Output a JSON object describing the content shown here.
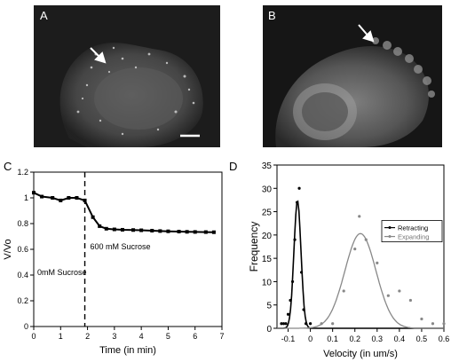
{
  "panels": {
    "a": {
      "label": "A"
    },
    "b": {
      "label": "B"
    },
    "c": {
      "label": "C"
    },
    "d": {
      "label": "D"
    }
  },
  "chart_data": [
    {
      "type": "line",
      "panel": "C",
      "xlabel": "Time (in min)",
      "ylabel": "V/Vo",
      "xlim": [
        0,
        7
      ],
      "ylim": [
        0,
        1.2
      ],
      "xticks": [
        "0",
        "1",
        "2",
        "3",
        "4",
        "5",
        "6",
        "7"
      ],
      "yticks": [
        "0",
        "0.2",
        "0.4",
        "0.6",
        "0.8",
        "1",
        "1.2"
      ],
      "grid": false,
      "annotations": {
        "left": "0mM Sucrose",
        "right": "600 mM Sucrose",
        "divider_x": 1.9
      },
      "series": [
        {
          "color": "#000000",
          "x": [
            0,
            0.3,
            0.7,
            1.0,
            1.3,
            1.6,
            1.9,
            2.2,
            2.45,
            2.7,
            3.0,
            3.3,
            3.7,
            4.0,
            4.4,
            4.7,
            5.0,
            5.4,
            5.7,
            6.0,
            6.4,
            6.7
          ],
          "y": [
            1.04,
            1.01,
            1.0,
            0.98,
            1.0,
            1.0,
            0.98,
            0.85,
            0.78,
            0.76,
            0.755,
            0.752,
            0.75,
            0.748,
            0.745,
            0.742,
            0.74,
            0.738,
            0.736,
            0.735,
            0.734,
            0.733
          ]
        }
      ]
    },
    {
      "type": "scatter",
      "panel": "D",
      "xlabel": "Velocity (in um/s)",
      "ylabel": "Frequency",
      "xlim": [
        -0.15,
        0.6
      ],
      "ylim": [
        0,
        35
      ],
      "xticks": [
        "-0.1",
        "0",
        "0.1",
        "0.2",
        "0.3",
        "0.4",
        "0.5",
        "0.6"
      ],
      "yticks": [
        "0",
        "5",
        "10",
        "15",
        "20",
        "25",
        "30",
        "35"
      ],
      "grid": false,
      "legend_position": "right",
      "series": [
        {
          "name": "Retracting",
          "color": "#000000",
          "points": [
            [
              -0.13,
              1
            ],
            [
              -0.12,
              1
            ],
            [
              -0.11,
              1
            ],
            [
              -0.1,
              3
            ],
            [
              -0.09,
              6
            ],
            [
              -0.08,
              10
            ],
            [
              -0.07,
              19
            ],
            [
              -0.06,
              27
            ],
            [
              -0.05,
              30
            ],
            [
              -0.04,
              12
            ],
            [
              -0.03,
              4
            ],
            [
              -0.02,
              1
            ],
            [
              0.0,
              1
            ]
          ],
          "fit": {
            "mean": -0.058,
            "sd": 0.016,
            "peak": 27.3
          }
        },
        {
          "name": "Expanding",
          "color": "#888888",
          "points": [
            [
              0.05,
              1
            ],
            [
              0.1,
              1
            ],
            [
              0.15,
              8
            ],
            [
              0.2,
              17
            ],
            [
              0.22,
              24
            ],
            [
              0.25,
              19
            ],
            [
              0.3,
              14
            ],
            [
              0.35,
              7
            ],
            [
              0.4,
              8
            ],
            [
              0.45,
              6
            ],
            [
              0.5,
              2
            ],
            [
              0.55,
              1
            ],
            [
              0.6,
              1
            ]
          ],
          "fit": {
            "mean": 0.225,
            "sd": 0.07,
            "peak": 20.3
          }
        }
      ]
    }
  ]
}
